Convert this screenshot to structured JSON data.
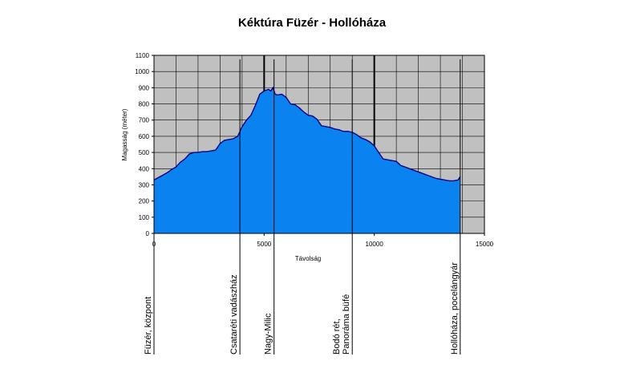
{
  "chart_data": {
    "type": "area",
    "title": "Kéktúra Füzér - Hollóháza",
    "xlabel": "Távolság",
    "ylabel": "Magasság (méter)",
    "xlim": [
      0,
      15000
    ],
    "ylim": [
      0,
      1100
    ],
    "x_ticks": [
      0,
      5000,
      10000,
      15000
    ],
    "x_tick_labels": [
      "0",
      "5000",
      "10000",
      "15000"
    ],
    "y_ticks": [
      0,
      100,
      200,
      300,
      400,
      500,
      600,
      700,
      800,
      900,
      1000,
      1100
    ],
    "y_tick_labels": [
      "0",
      "100",
      "200",
      "300",
      "400",
      "500",
      "600",
      "700",
      "800",
      "900",
      "1000",
      "1100"
    ],
    "grid": true,
    "colors": {
      "plot_bg": "#c0c0c0",
      "fill": "#0a82f0",
      "line": "#000080",
      "grid": "#000000"
    },
    "series": [
      {
        "x": [
          0,
          200,
          400,
          600,
          800,
          1000,
          1200,
          1400,
          1600,
          1800,
          2000,
          2200,
          2400,
          2600,
          2800,
          3000,
          3200,
          3400,
          3600,
          3800,
          4000,
          4200,
          4400,
          4600,
          4800,
          5000,
          5200,
          5300,
          5400,
          5500,
          5600,
          5800,
          6000,
          6200,
          6400,
          6600,
          6800,
          7000,
          7200,
          7400,
          7600,
          7800,
          8000,
          8200,
          8400,
          8600,
          8800,
          9000,
          9200,
          9400,
          9600,
          9800,
          10000,
          10200,
          10400,
          10600,
          10800,
          11000,
          11200,
          11400,
          11600,
          11800,
          12000,
          12200,
          12400,
          12600,
          12800,
          13000,
          13200,
          13400,
          13600,
          13800,
          13900
        ],
        "y": [
          330,
          345,
          360,
          375,
          395,
          410,
          440,
          460,
          490,
          500,
          500,
          505,
          505,
          510,
          515,
          555,
          575,
          580,
          585,
          600,
          660,
          700,
          730,
          790,
          860,
          880,
          890,
          880,
          900,
          860,
          855,
          860,
          840,
          800,
          795,
          775,
          750,
          730,
          725,
          705,
          665,
          660,
          655,
          645,
          640,
          630,
          630,
          625,
          610,
          590,
          580,
          565,
          540,
          500,
          460,
          455,
          450,
          445,
          420,
          410,
          400,
          390,
          380,
          370,
          360,
          350,
          340,
          335,
          330,
          325,
          325,
          330,
          350
        ]
      }
    ],
    "annotations": [
      {
        "label": "Füzér, központ",
        "x": 0
      },
      {
        "label": "Csataréti vadászház",
        "x": 3900
      },
      {
        "label": "Nagy-Milic",
        "x": 5450
      },
      {
        "label": "Bodó rét,\nPanoráma büfé",
        "x": 9000
      },
      {
        "label": "Hollóháza, pocelángyár",
        "x": 13900
      }
    ]
  }
}
